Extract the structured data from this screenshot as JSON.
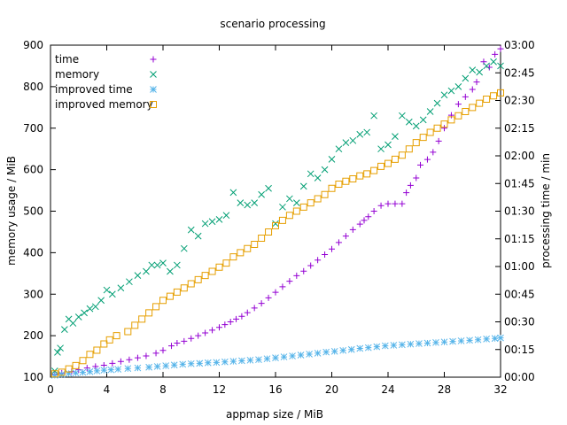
{
  "chart_data": {
    "type": "scatter",
    "title": "scenario processing",
    "xlabel": "appmap size / MiB",
    "ylabel": "memory usage / MiB",
    "y2label": "processing time / min",
    "xlim": [
      0,
      32
    ],
    "ylim": [
      100,
      900
    ],
    "y2lim": [
      0,
      180
    ],
    "x_ticks": [
      0,
      4,
      8,
      12,
      16,
      20,
      24,
      28,
      32
    ],
    "x_tick_labels": [
      "0",
      "4",
      "8",
      "12",
      "16",
      "20",
      "24",
      "28",
      "32"
    ],
    "y_ticks": [
      100,
      200,
      300,
      400,
      500,
      600,
      700,
      800,
      900
    ],
    "y_tick_labels": [
      "100",
      "200",
      "300",
      "400",
      "500",
      "600",
      "700",
      "800",
      "900"
    ],
    "y2_ticks": [
      0,
      15,
      30,
      45,
      60,
      75,
      90,
      105,
      120,
      135,
      150,
      165,
      180
    ],
    "y2_tick_labels": [
      "00:00",
      "00:15",
      "00:30",
      "00:45",
      "01:00",
      "01:15",
      "01:30",
      "01:45",
      "02:00",
      "02:15",
      "02:30",
      "02:45",
      "03:00"
    ],
    "legend_position": "top-left",
    "grid": false,
    "series": [
      {
        "name": "time",
        "axis": "y2",
        "marker": "plus",
        "color": "#9400d3",
        "points": [
          [
            0.3,
            1.5
          ],
          [
            0.8,
            2.2
          ],
          [
            1.5,
            3
          ],
          [
            2,
            4
          ],
          [
            2.6,
            5
          ],
          [
            3.2,
            5.8
          ],
          [
            3.8,
            6.5
          ],
          [
            4.4,
            7.5
          ],
          [
            5,
            8.5
          ],
          [
            5.6,
            9.5
          ],
          [
            6.2,
            10.5
          ],
          [
            6.8,
            11.5
          ],
          [
            7.5,
            13
          ],
          [
            8,
            14.5
          ],
          [
            8.6,
            17
          ],
          [
            9,
            18.5
          ],
          [
            9.5,
            19.5
          ],
          [
            10,
            21
          ],
          [
            10.5,
            22.5
          ],
          [
            11,
            24
          ],
          [
            11.5,
            25.5
          ],
          [
            12,
            27
          ],
          [
            12.4,
            28.5
          ],
          [
            12.8,
            30
          ],
          [
            13.2,
            31.5
          ],
          [
            13.6,
            33
          ],
          [
            14,
            35
          ],
          [
            14.5,
            37.5
          ],
          [
            15,
            40
          ],
          [
            15.5,
            43
          ],
          [
            16,
            46
          ],
          [
            16.5,
            49
          ],
          [
            17,
            52
          ],
          [
            17.5,
            55
          ],
          [
            18,
            57.5
          ],
          [
            18.5,
            60.5
          ],
          [
            19,
            63.5
          ],
          [
            19.5,
            66.5
          ],
          [
            20,
            69.5
          ],
          [
            20.5,
            73
          ],
          [
            21,
            76.5
          ],
          [
            21.5,
            80
          ],
          [
            22,
            83
          ],
          [
            22.3,
            85
          ],
          [
            22.6,
            87
          ],
          [
            23,
            90
          ],
          [
            23.5,
            93
          ],
          [
            24,
            94
          ],
          [
            24.5,
            94
          ],
          [
            25,
            94
          ],
          [
            25.3,
            100
          ],
          [
            25.6,
            104
          ],
          [
            26,
            108
          ],
          [
            26.3,
            115
          ],
          [
            26.8,
            118
          ],
          [
            27.2,
            122
          ],
          [
            27.6,
            128
          ],
          [
            28,
            135
          ],
          [
            28.5,
            142
          ],
          [
            29,
            148
          ],
          [
            29.5,
            152
          ],
          [
            30,
            156
          ],
          [
            30.3,
            160
          ],
          [
            30.8,
            171
          ],
          [
            31.2,
            168
          ],
          [
            31.6,
            175
          ],
          [
            32,
            178
          ]
        ]
      },
      {
        "name": "memory",
        "axis": "y",
        "marker": "cross",
        "color": "#009e73",
        "points": [
          [
            0.3,
            115
          ],
          [
            0.5,
            160
          ],
          [
            0.7,
            170
          ],
          [
            1,
            215
          ],
          [
            1.3,
            240
          ],
          [
            1.6,
            230
          ],
          [
            2,
            245
          ],
          [
            2.4,
            255
          ],
          [
            2.8,
            265
          ],
          [
            3.2,
            270
          ],
          [
            3.6,
            285
          ],
          [
            4,
            310
          ],
          [
            4.4,
            300
          ],
          [
            5,
            315
          ],
          [
            5.6,
            330
          ],
          [
            6.2,
            345
          ],
          [
            6.8,
            355
          ],
          [
            7.2,
            370
          ],
          [
            7.6,
            370
          ],
          [
            8,
            375
          ],
          [
            8.5,
            355
          ],
          [
            9,
            370
          ],
          [
            9.5,
            410
          ],
          [
            10,
            455
          ],
          [
            10.5,
            440
          ],
          [
            11,
            470
          ],
          [
            11.5,
            475
          ],
          [
            12,
            480
          ],
          [
            12.5,
            490
          ],
          [
            13,
            545
          ],
          [
            13.5,
            520
          ],
          [
            14,
            515
          ],
          [
            14.5,
            520
          ],
          [
            15,
            540
          ],
          [
            15.5,
            555
          ],
          [
            16,
            470
          ],
          [
            16.5,
            510
          ],
          [
            17,
            530
          ],
          [
            17.5,
            520
          ],
          [
            18,
            560
          ],
          [
            18.5,
            590
          ],
          [
            19,
            580
          ],
          [
            19.5,
            600
          ],
          [
            20,
            625
          ],
          [
            20.5,
            650
          ],
          [
            21,
            665
          ],
          [
            21.5,
            670
          ],
          [
            22,
            685
          ],
          [
            22.5,
            690
          ],
          [
            23,
            730
          ],
          [
            23.5,
            650
          ],
          [
            24,
            660
          ],
          [
            24.5,
            680
          ],
          [
            25,
            730
          ],
          [
            25.5,
            715
          ],
          [
            26,
            705
          ],
          [
            26.5,
            720
          ],
          [
            27,
            740
          ],
          [
            27.5,
            760
          ],
          [
            28,
            780
          ],
          [
            28.5,
            790
          ],
          [
            29,
            800
          ],
          [
            29.5,
            820
          ],
          [
            30,
            840
          ],
          [
            30.5,
            835
          ],
          [
            31,
            850
          ],
          [
            31.5,
            860
          ],
          [
            32,
            850
          ]
        ]
      },
      {
        "name": "improved time",
        "axis": "y2",
        "marker": "star",
        "color": "#56b4e9",
        "points": [
          [
            0.3,
            1
          ],
          [
            0.8,
            1.5
          ],
          [
            1.3,
            2
          ],
          [
            1.8,
            2.3
          ],
          [
            2.3,
            2.6
          ],
          [
            2.8,
            3
          ],
          [
            3.3,
            3.4
          ],
          [
            3.8,
            3.8
          ],
          [
            4.3,
            4
          ],
          [
            4.8,
            4.3
          ],
          [
            5.5,
            4.7
          ],
          [
            6.2,
            5
          ],
          [
            7,
            5.4
          ],
          [
            7.6,
            5.8
          ],
          [
            8.2,
            6.2
          ],
          [
            8.8,
            6.6
          ],
          [
            9.4,
            7
          ],
          [
            10,
            7.3
          ],
          [
            10.6,
            7.5
          ],
          [
            11.2,
            7.8
          ],
          [
            11.8,
            8
          ],
          [
            12.4,
            8.3
          ],
          [
            13,
            8.6
          ],
          [
            13.6,
            8.9
          ],
          [
            14.2,
            9.2
          ],
          [
            14.8,
            9.5
          ],
          [
            15.4,
            10
          ],
          [
            16,
            10.5
          ],
          [
            16.6,
            11
          ],
          [
            17.2,
            11.5
          ],
          [
            17.8,
            12
          ],
          [
            18.4,
            12.5
          ],
          [
            19,
            13
          ],
          [
            19.6,
            13.6
          ],
          [
            20.2,
            14
          ],
          [
            20.8,
            14.5
          ],
          [
            21.4,
            15
          ],
          [
            22,
            15.6
          ],
          [
            22.6,
            16
          ],
          [
            23.2,
            16.5
          ],
          [
            23.8,
            17
          ],
          [
            24.4,
            17.3
          ],
          [
            25,
            17.6
          ],
          [
            25.6,
            17.9
          ],
          [
            26.2,
            18.2
          ],
          [
            26.8,
            18.5
          ],
          [
            27.4,
            18.8
          ],
          [
            28,
            19.1
          ],
          [
            28.6,
            19.4
          ],
          [
            29.2,
            19.7
          ],
          [
            29.8,
            20
          ],
          [
            30.4,
            20.3
          ],
          [
            31,
            20.7
          ],
          [
            31.6,
            21
          ],
          [
            32,
            21.3
          ]
        ]
      },
      {
        "name": "improved memory",
        "axis": "y",
        "marker": "square",
        "color": "#e69f00",
        "points": [
          [
            0.3,
            108
          ],
          [
            0.8,
            112
          ],
          [
            1.3,
            120
          ],
          [
            1.8,
            128
          ],
          [
            2.3,
            140
          ],
          [
            2.8,
            155
          ],
          [
            3.3,
            165
          ],
          [
            3.8,
            180
          ],
          [
            4.2,
            190
          ],
          [
            4.7,
            200
          ],
          [
            5.5,
            210
          ],
          [
            6,
            225
          ],
          [
            6.5,
            240
          ],
          [
            7,
            255
          ],
          [
            7.5,
            270
          ],
          [
            8,
            285
          ],
          [
            8.5,
            295
          ],
          [
            9,
            305
          ],
          [
            9.5,
            315
          ],
          [
            10,
            325
          ],
          [
            10.5,
            335
          ],
          [
            11,
            345
          ],
          [
            11.5,
            355
          ],
          [
            12,
            365
          ],
          [
            12.5,
            375
          ],
          [
            13,
            390
          ],
          [
            13.5,
            400
          ],
          [
            14,
            410
          ],
          [
            14.5,
            420
          ],
          [
            15,
            435
          ],
          [
            15.5,
            450
          ],
          [
            16,
            465
          ],
          [
            16.5,
            478
          ],
          [
            17,
            490
          ],
          [
            17.5,
            500
          ],
          [
            18,
            510
          ],
          [
            18.5,
            520
          ],
          [
            19,
            530
          ],
          [
            19.5,
            540
          ],
          [
            20,
            555
          ],
          [
            20.5,
            565
          ],
          [
            21,
            572
          ],
          [
            21.5,
            578
          ],
          [
            22,
            585
          ],
          [
            22.5,
            590
          ],
          [
            23,
            598
          ],
          [
            23.5,
            608
          ],
          [
            24,
            615
          ],
          [
            24.5,
            625
          ],
          [
            25,
            635
          ],
          [
            25.5,
            650
          ],
          [
            26,
            665
          ],
          [
            26.5,
            678
          ],
          [
            27,
            690
          ],
          [
            27.5,
            700
          ],
          [
            28,
            710
          ],
          [
            28.5,
            720
          ],
          [
            29,
            730
          ],
          [
            29.5,
            740
          ],
          [
            30,
            750
          ],
          [
            30.5,
            760
          ],
          [
            31,
            770
          ],
          [
            31.5,
            778
          ],
          [
            32,
            785
          ]
        ]
      }
    ]
  }
}
